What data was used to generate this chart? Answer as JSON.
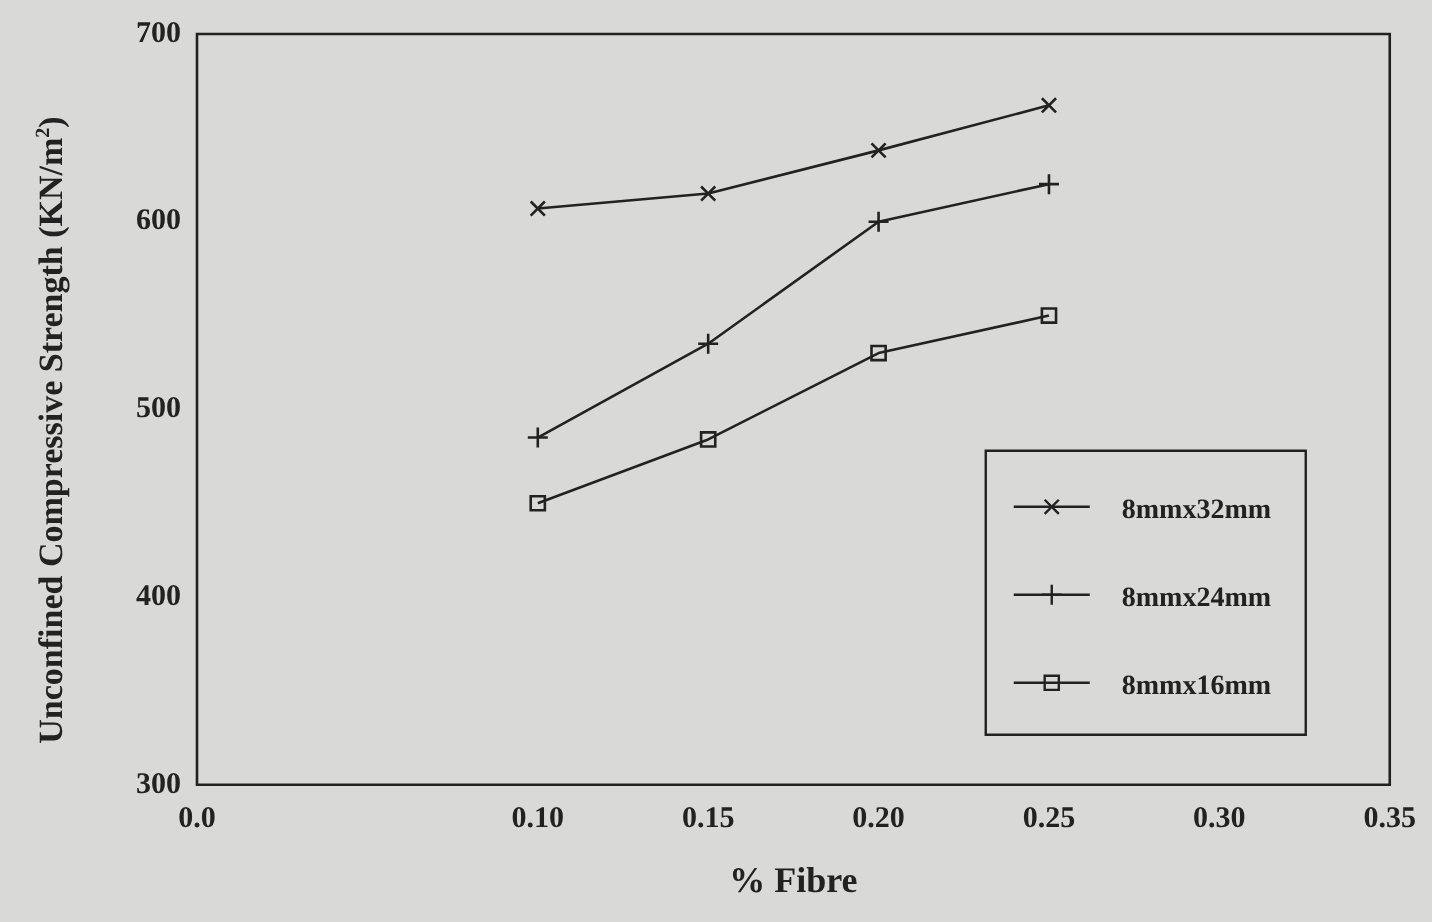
{
  "chart_data": {
    "type": "line",
    "xlabel": "% Fibre",
    "ylabel": "Unconfined Compressive Strength (KN/m$^{2}$)",
    "x": [
      0.1,
      0.15,
      0.2,
      0.25
    ],
    "series": [
      {
        "name": "8mmx32mm",
        "color": "#222222",
        "marker": "cross",
        "values": [
          607,
          615,
          638,
          662
        ]
      },
      {
        "name": "8mmx24mm",
        "color": "#222222",
        "marker": "plus",
        "values": [
          485,
          535,
          600,
          620
        ]
      },
      {
        "name": "8mmx16mm",
        "color": "#222222",
        "marker": "square",
        "values": [
          450,
          484,
          530,
          550
        ]
      }
    ],
    "xlim": [
      0,
      0.35
    ],
    "xticks": [
      {
        "value": 0,
        "label": "0.0"
      },
      {
        "value": 0.1,
        "label": "0.10"
      },
      {
        "value": 0.15,
        "label": "0.15"
      },
      {
        "value": 0.2,
        "label": "0.20"
      },
      {
        "value": 0.25,
        "label": "0.25"
      },
      {
        "value": 0.3,
        "label": "0.30"
      },
      {
        "value": 0.35,
        "label": "0.35"
      }
    ],
    "ylim": [
      300,
      700
    ],
    "yticks": [
      300,
      400,
      500,
      600,
      700
    ],
    "grid": false,
    "legend": "bottom right",
    "line_style": "solid"
  }
}
